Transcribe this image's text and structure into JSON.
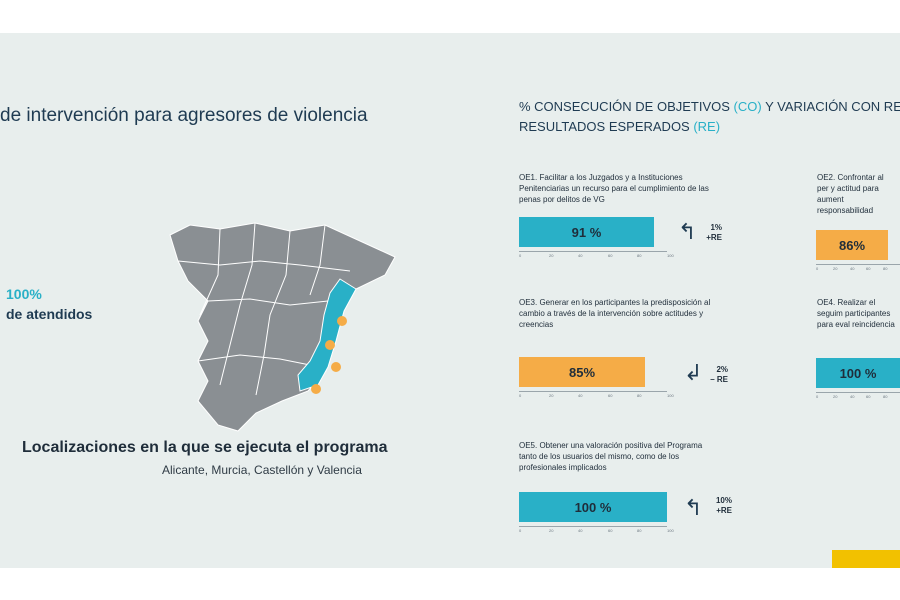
{
  "colors": {
    "teal": "#29b0c7",
    "orange": "#f5ac47",
    "navy": "#1f3b52",
    "map_gray": "#8a8f93"
  },
  "left": {
    "title": "de intervención para agresores de violencia",
    "stat_value": "100%",
    "stat_label": "de atendidos",
    "loc_title": "Localizaciones en la que se ejecuta el programa",
    "loc_sub": "Alicante, Murcia, Castellón y Valencia",
    "map_icon": "spain-map-icon"
  },
  "right": {
    "heading_part1": "% CONSECUCIÓN DE OBJETIVOS ",
    "heading_co": "(CO)",
    "heading_part2": " Y VARIACIÓN CON RES",
    "heading_line2_part1": "RESULTADOS ESPERADOS ",
    "heading_re": "(RE)"
  },
  "objectives": [
    {
      "id": "oe1",
      "text": "OE1. Facilitar a los Juzgados y a Instituciones Penitenciarias un recurso para el cumplimiento de las penas por delitos de VG",
      "value_label": "91 %",
      "value": 91,
      "color": "teal",
      "change_pct": "1%",
      "change_dir": "+RE",
      "arrow": "up"
    },
    {
      "id": "oe2",
      "text": "OE2. Confrontar al per y actitud para aument responsabilidad",
      "value_label": "86%",
      "value": 86,
      "color": "orange"
    },
    {
      "id": "oe3",
      "text": "OE3. Generar en los participantes la predisposición al cambio a través de la intervención sobre actitudes y creencias",
      "value_label": "85%",
      "value": 85,
      "color": "orange",
      "change_pct": "2%",
      "change_dir": "– RE",
      "arrow": "down"
    },
    {
      "id": "oe4",
      "text": "OE4. Realizar el seguim participantes para eval reincidencia",
      "value_label": "100 %",
      "value": 100,
      "color": "teal"
    },
    {
      "id": "oe5",
      "text": "OE5. Obtener una valoración positiva del Programa tanto de los usuarios del mismo, como de los profesionales implicados",
      "value_label": "100 %",
      "value": 100,
      "color": "teal",
      "change_pct": "10%",
      "change_dir": "+RE",
      "arrow": "up"
    }
  ],
  "axis_ticks": [
    "0",
    "20",
    "40",
    "60",
    "80",
    "100"
  ],
  "logo": {
    "name": "gobierno-de-espana-logo"
  }
}
